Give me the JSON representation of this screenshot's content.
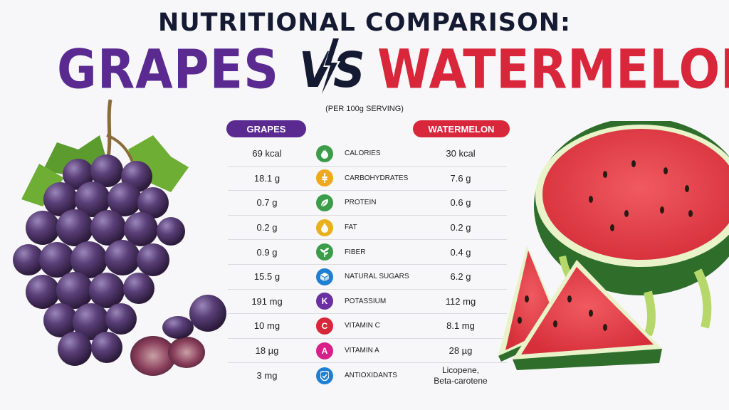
{
  "header": {
    "title": "NUTRITIONAL COMPARISON:",
    "left_fruit": "GRAPES",
    "vs": "VS",
    "right_fruit": "WATERMELON",
    "serving_note": "(PER 100g SERVING)"
  },
  "columns": {
    "left": "GRAPES",
    "right": "WATERMELON"
  },
  "colors": {
    "grapes": "#5a2a91",
    "watermelon": "#d8263a",
    "dark": "#151a33"
  },
  "rows": [
    {
      "grapes": "69 kcal",
      "nutrient": "CALORIES",
      "watermelon": "30 kcal",
      "icon": "flame-icon",
      "color": "#3b9c4a",
      "glyph": ""
    },
    {
      "grapes": "18.1 g",
      "nutrient": "CARBOHYDRATES",
      "watermelon": "7.6 g",
      "icon": "wheat-icon",
      "color": "#f0a81c",
      "glyph": ""
    },
    {
      "grapes": "0.7 g",
      "nutrient": "PROTEIN",
      "watermelon": "0.6 g",
      "icon": "leaf-icon",
      "color": "#3b9c4a",
      "glyph": ""
    },
    {
      "grapes": "0.2 g",
      "nutrient": "FAT",
      "watermelon": "0.2 g",
      "icon": "drop-icon",
      "color": "#e8b01c",
      "glyph": ""
    },
    {
      "grapes": "0.9 g",
      "nutrient": "FIBER",
      "watermelon": "0.4 g",
      "icon": "plant-icon",
      "color": "#3b9c4a",
      "glyph": ""
    },
    {
      "grapes": "15.5 g",
      "nutrient": "NATURAL SUGARS",
      "watermelon": "6.2 g",
      "icon": "cube-icon",
      "color": "#1f7fd1",
      "glyph": ""
    },
    {
      "grapes": "191 mg",
      "nutrient": "POTASSIUM",
      "watermelon": "112 mg",
      "icon": "potassium-k-icon",
      "color": "#6a2fa0",
      "glyph": "K"
    },
    {
      "grapes": "10 mg",
      "nutrient": "VITAMIN C",
      "watermelon": "8.1 mg",
      "icon": "vitamin-c-icon",
      "color": "#d8263a",
      "glyph": "C"
    },
    {
      "grapes": "18 µg",
      "nutrient": "VITAMIN A",
      "watermelon": "28 µg",
      "icon": "vitamin-a-icon",
      "color": "#d81f8a",
      "glyph": "A"
    },
    {
      "grapes": "3 mg",
      "nutrient": "ANTIOXIDANTS",
      "watermelon_line1": "Licopene,",
      "watermelon_line2": "Beta-carotene",
      "icon": "shield-icon",
      "color": "#1f7fd1",
      "glyph": ""
    }
  ]
}
